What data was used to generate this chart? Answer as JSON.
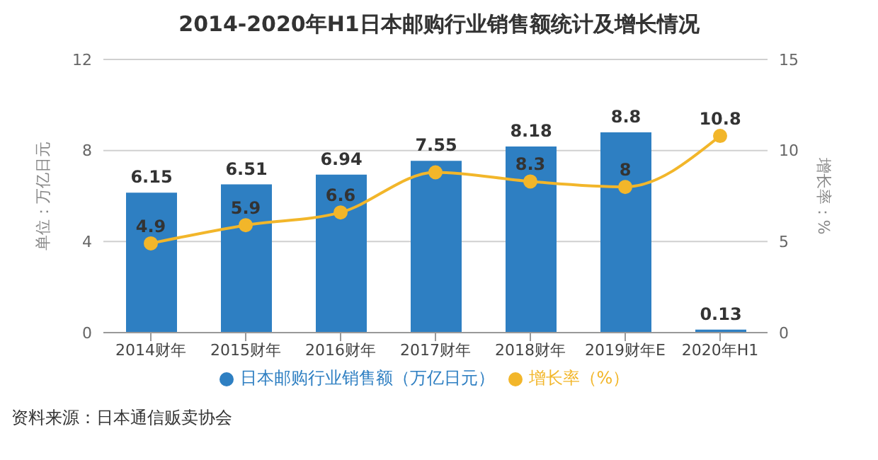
{
  "chart_data": {
    "type": "bar",
    "title": "2014-2020年H1日本邮购行业销售额统计及增长情况",
    "ylabel": "单位：万亿日元",
    "y2label": "增长率：%",
    "categories": [
      "2014财年",
      "2015财年",
      "2016财年",
      "2017财年",
      "2018财年",
      "2019财年E",
      "2020年H1"
    ],
    "series": [
      {
        "name": "日本邮购行业销售额（万亿日元）",
        "color": "#2e7fc2",
        "values": [
          6.15,
          6.51,
          6.94,
          7.55,
          8.18,
          8.8,
          0.13
        ],
        "value_labels": [
          "6.15",
          "6.51",
          "6.94",
          "7.55",
          "8.18",
          "8.8",
          "0.13"
        ]
      },
      {
        "name": "增长率（%）",
        "type": "line",
        "axis": "y2",
        "color": "#f2b62a",
        "values": [
          4.9,
          5.9,
          6.6,
          8.8,
          8.3,
          8,
          10.8
        ],
        "value_labels": [
          "4.9",
          "5.9",
          "6.6",
          null,
          "8.3",
          "8",
          "10.8"
        ]
      }
    ],
    "ylim": [
      0,
      12
    ],
    "yticks": [
      0,
      4,
      8,
      12
    ],
    "y2lim": [
      0,
      15
    ],
    "y2ticks": [
      0,
      5,
      10,
      15
    ],
    "grid": "y",
    "marker": "circle",
    "legend": "bottom",
    "annotations": [
      "资料来源：日本通信贩卖协会"
    ]
  }
}
